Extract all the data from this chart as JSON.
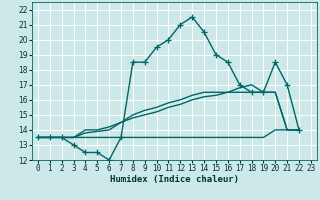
{
  "xlabel": "Humidex (Indice chaleur)",
  "bg_color": "#cce8e8",
  "grid_color": "#ffffff",
  "line_color": "#006666",
  "xlim": [
    -0.5,
    23.5
  ],
  "ylim": [
    12,
    22.5
  ],
  "yticks": [
    12,
    13,
    14,
    15,
    16,
    17,
    18,
    19,
    20,
    21,
    22
  ],
  "xticks": [
    0,
    1,
    2,
    3,
    4,
    5,
    6,
    7,
    8,
    9,
    10,
    11,
    12,
    13,
    14,
    15,
    16,
    17,
    18,
    19,
    20,
    21,
    22,
    23
  ],
  "series": [
    {
      "x": [
        0,
        1,
        2,
        3,
        4,
        5,
        6,
        7,
        8,
        9,
        10,
        11,
        12,
        13,
        14,
        15,
        16,
        17,
        18,
        19,
        20,
        21,
        22
      ],
      "y": [
        13.5,
        13.5,
        13.5,
        13.0,
        12.5,
        12.5,
        12.0,
        13.5,
        18.5,
        18.5,
        19.5,
        20.0,
        21.0,
        21.5,
        20.5,
        19.0,
        18.5,
        17.0,
        16.5,
        16.5,
        18.5,
        17.0,
        14.0
      ],
      "marker": true
    },
    {
      "x": [
        0,
        1,
        2,
        3,
        4,
        5,
        6,
        7,
        8,
        9,
        10,
        11,
        12,
        13,
        14,
        15,
        16,
        17,
        18,
        19,
        20,
        21,
        22
      ],
      "y": [
        13.5,
        13.5,
        13.5,
        13.5,
        14.0,
        14.0,
        14.2,
        14.5,
        14.8,
        15.0,
        15.2,
        15.5,
        15.7,
        16.0,
        16.2,
        16.3,
        16.5,
        16.8,
        17.0,
        16.5,
        16.5,
        14.0,
        14.0
      ],
      "marker": false
    },
    {
      "x": [
        0,
        1,
        2,
        3,
        4,
        5,
        6,
        7,
        8,
        9,
        10,
        11,
        12,
        13,
        14,
        15,
        16,
        17,
        18,
        19,
        20,
        21,
        22
      ],
      "y": [
        13.5,
        13.5,
        13.5,
        13.5,
        13.8,
        13.9,
        14.0,
        14.5,
        15.0,
        15.3,
        15.5,
        15.8,
        16.0,
        16.3,
        16.5,
        16.5,
        16.5,
        16.5,
        16.5,
        16.5,
        16.5,
        14.0,
        14.0
      ],
      "marker": false
    },
    {
      "x": [
        0,
        1,
        2,
        3,
        4,
        5,
        6,
        7,
        8,
        9,
        10,
        11,
        12,
        13,
        14,
        15,
        16,
        17,
        18,
        19,
        20,
        21,
        22
      ],
      "y": [
        13.5,
        13.5,
        13.5,
        13.5,
        13.5,
        13.5,
        13.5,
        13.5,
        13.5,
        13.5,
        13.5,
        13.5,
        13.5,
        13.5,
        13.5,
        13.5,
        13.5,
        13.5,
        13.5,
        13.5,
        14.0,
        14.0,
        14.0
      ],
      "marker": false
    }
  ],
  "marker_style": "+",
  "markersize": 4,
  "linewidth": 1.0,
  "label_fontsize": 6.5,
  "tick_fontsize": 5.5
}
